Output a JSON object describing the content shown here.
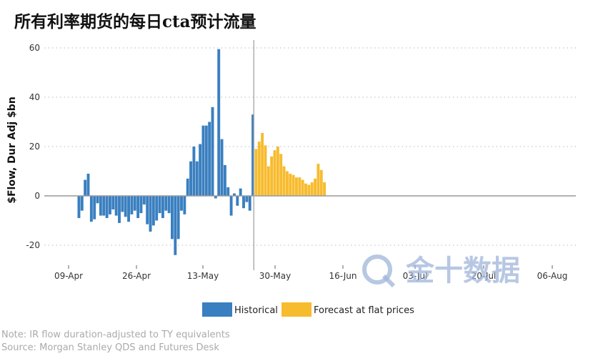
{
  "chart_data": {
    "type": "bar",
    "title": "所有利率期货的每日cta预计流量",
    "xlabel": "",
    "ylabel": "$Flow, Dur Adj $bn",
    "ylim": [
      -29,
      62
    ],
    "yticks": [
      -20,
      0,
      20,
      40,
      60
    ],
    "xtick_labels": [
      "09-Apr",
      "26-Apr",
      "13-May",
      "30-May",
      "16-Jun",
      "03-Jul",
      "20-Jul",
      "06-Aug"
    ],
    "grid": true,
    "legend_position": "bottom",
    "colors": {
      "historical": "#3a7fc0",
      "forecast": "#f7bb2e",
      "axis": "#999999",
      "divider": "#aaaaaa"
    },
    "series": [
      {
        "name": "Historical",
        "values": [
          -9,
          -6,
          6.5,
          9,
          -10.5,
          -9.5,
          -3,
          -8,
          -8,
          -9,
          -7.5,
          -5.5,
          -8,
          -11,
          -6.5,
          -8.5,
          -10.5,
          -7.5,
          -6,
          -9,
          -7,
          -3.5,
          -11.5,
          -14.5,
          -12,
          -10,
          -7,
          -9,
          -6,
          -7,
          -17.5,
          -24,
          -17.5,
          -6,
          -7.5,
          7,
          14,
          20,
          14,
          21,
          28.5,
          28.5,
          30,
          36,
          -1,
          59.5,
          23,
          12.5,
          3.5,
          -8,
          1,
          -4,
          3,
          -5,
          -2.5,
          -6,
          33
        ]
      },
      {
        "name": "Forecast at flat prices",
        "values": [
          19,
          22,
          25.5,
          20.5,
          12,
          16,
          18.5,
          20,
          17,
          12,
          10,
          9,
          8.5,
          7.5,
          7.5,
          6.5,
          5,
          4.5,
          5.5,
          7,
          13,
          10.5,
          5.5
        ]
      }
    ],
    "annotations": [
      "Note: IR flow duration-adjusted to TY equivalents",
      "Source: Morgan Stanley QDS and Futures Desk"
    ]
  },
  "watermark": "金十数据"
}
